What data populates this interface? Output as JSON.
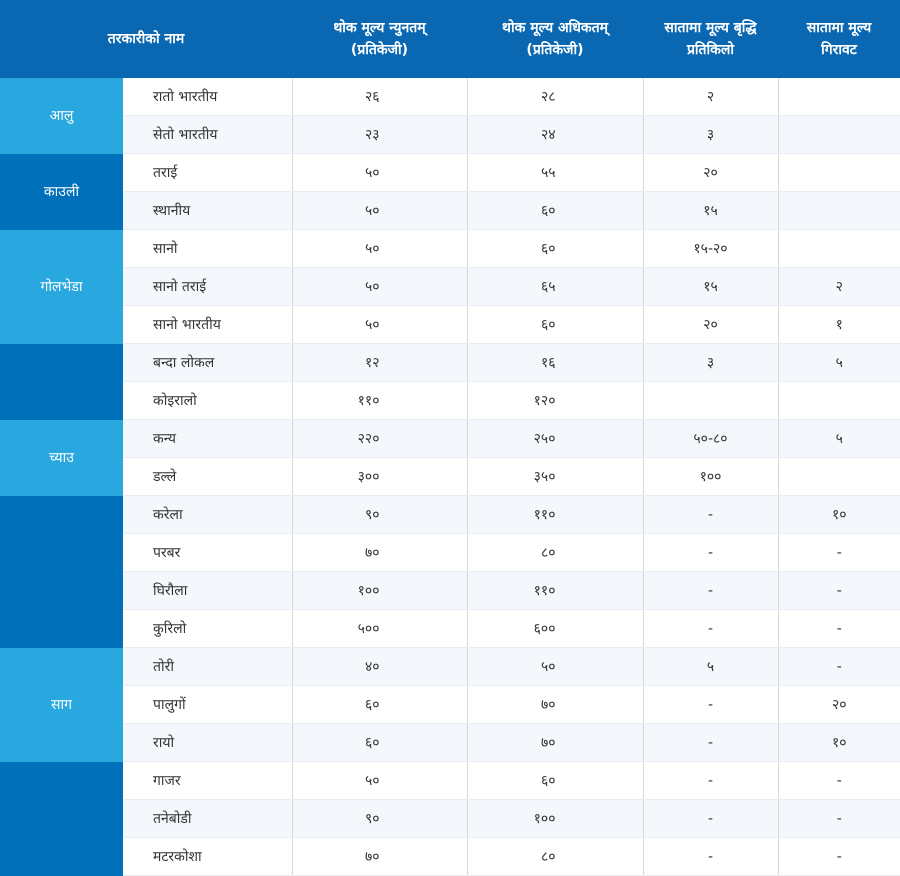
{
  "header": {
    "columns": [
      [
        "तरकारीको नाम"
      ],
      [
        "थोक मूल्य न्युनतम्",
        "(प्रतिकेजी)"
      ],
      [
        "थोक मूल्य अधिकतम्",
        "(प्रतिकेजी)"
      ],
      [
        "सातामा मूल्य बृद्धि",
        "प्रतिकिलो"
      ],
      [
        "सातामा मूल्य",
        "गिरावट"
      ]
    ]
  },
  "groups": [
    {
      "label": "आलु",
      "rows": [
        [
          "रातो भारतीय",
          "२६",
          "२८",
          "२",
          null
        ],
        [
          "सेतो भारतीय",
          "२३",
          "२४",
          "३",
          null
        ]
      ]
    },
    {
      "label": "काउली",
      "rows": [
        [
          "तराई",
          "५०",
          "५५",
          "२०",
          null
        ],
        [
          "स्थानीय",
          "५०",
          "६०",
          "१५",
          null
        ]
      ]
    },
    {
      "label": "गोलभेडा",
      "rows": [
        [
          "सानो",
          "५०",
          "६०",
          "१५-२०",
          null
        ],
        [
          "सानो तराई",
          "५०",
          "६५",
          "१५",
          "२"
        ],
        [
          "सानो भारतीय",
          "५०",
          "६०",
          "२०",
          "१"
        ]
      ]
    },
    {
      "label": null,
      "rows": [
        [
          "बन्दा लोकल",
          "१२",
          "१६",
          "३",
          "५"
        ],
        [
          "कोइरालो",
          "११०",
          "१२०",
          null,
          null
        ]
      ]
    },
    {
      "label": "च्याउ",
      "rows": [
        [
          "कन्य",
          "२२०",
          "२५०",
          "५०-८०",
          "५"
        ],
        [
          "डल्ले",
          "३००",
          "३५०",
          "१००",
          null
        ]
      ]
    },
    {
      "label": null,
      "rows": [
        [
          "करेला",
          "९०",
          "११०",
          "-",
          "१०"
        ],
        [
          "परबर",
          "७०",
          "८०",
          "-",
          "-"
        ],
        [
          "घिरौला",
          "१००",
          "११०",
          "-",
          "-"
        ],
        [
          "कुरिलो",
          "५००",
          "६००",
          "-",
          "-"
        ]
      ]
    },
    {
      "label": "साग",
      "rows": [
        [
          "तोरी",
          "४०",
          "५०",
          "५",
          "-"
        ],
        [
          "पालुगों",
          "६०",
          "७०",
          "-",
          "२०"
        ],
        [
          "रायो",
          "६०",
          "७०",
          "-",
          "१०"
        ]
      ]
    },
    {
      "label": null,
      "rows": [
        [
          "गाजर",
          "५०",
          "६०",
          "-",
          "-"
        ],
        [
          "तनेबोडी",
          "९०",
          "१००",
          "-",
          "-"
        ],
        [
          "मटरकोशा",
          "७०",
          "८०",
          "-",
          "-"
        ]
      ]
    }
  ]
}
